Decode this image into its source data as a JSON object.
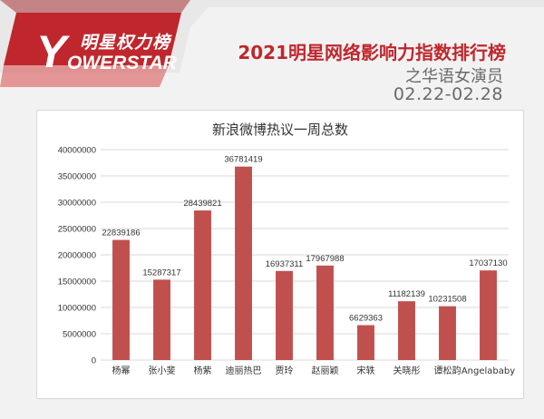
{
  "brand": {
    "logo_cn": "明星权力榜",
    "logo_en": "OWERSTAR",
    "logo_letter": "Y",
    "accent": "#c0272d"
  },
  "header": {
    "title": "2021明星网络影响力指数排行榜",
    "subtitle": "之华语女演员",
    "date_range": "02.22-02.28"
  },
  "chart_data": {
    "type": "bar",
    "title": "新浪微博热议一周总数",
    "xlabel": "",
    "ylabel": "",
    "categories": [
      "杨幂",
      "张小斐",
      "杨紫",
      "迪丽热巴",
      "贾玲",
      "赵丽颖",
      "宋轶",
      "关晓彤",
      "谭松韵",
      "Angelababy"
    ],
    "values": [
      22839186,
      15287317,
      28439821,
      36781419,
      16937311,
      17967988,
      6629363,
      11182139,
      10231508,
      17037130
    ],
    "ylim": [
      0,
      40000000
    ],
    "yticks": [
      0,
      5000000,
      10000000,
      15000000,
      20000000,
      25000000,
      30000000,
      35000000,
      40000000
    ],
    "grid": true,
    "legend": "none",
    "bar_color": "#c0504d"
  }
}
